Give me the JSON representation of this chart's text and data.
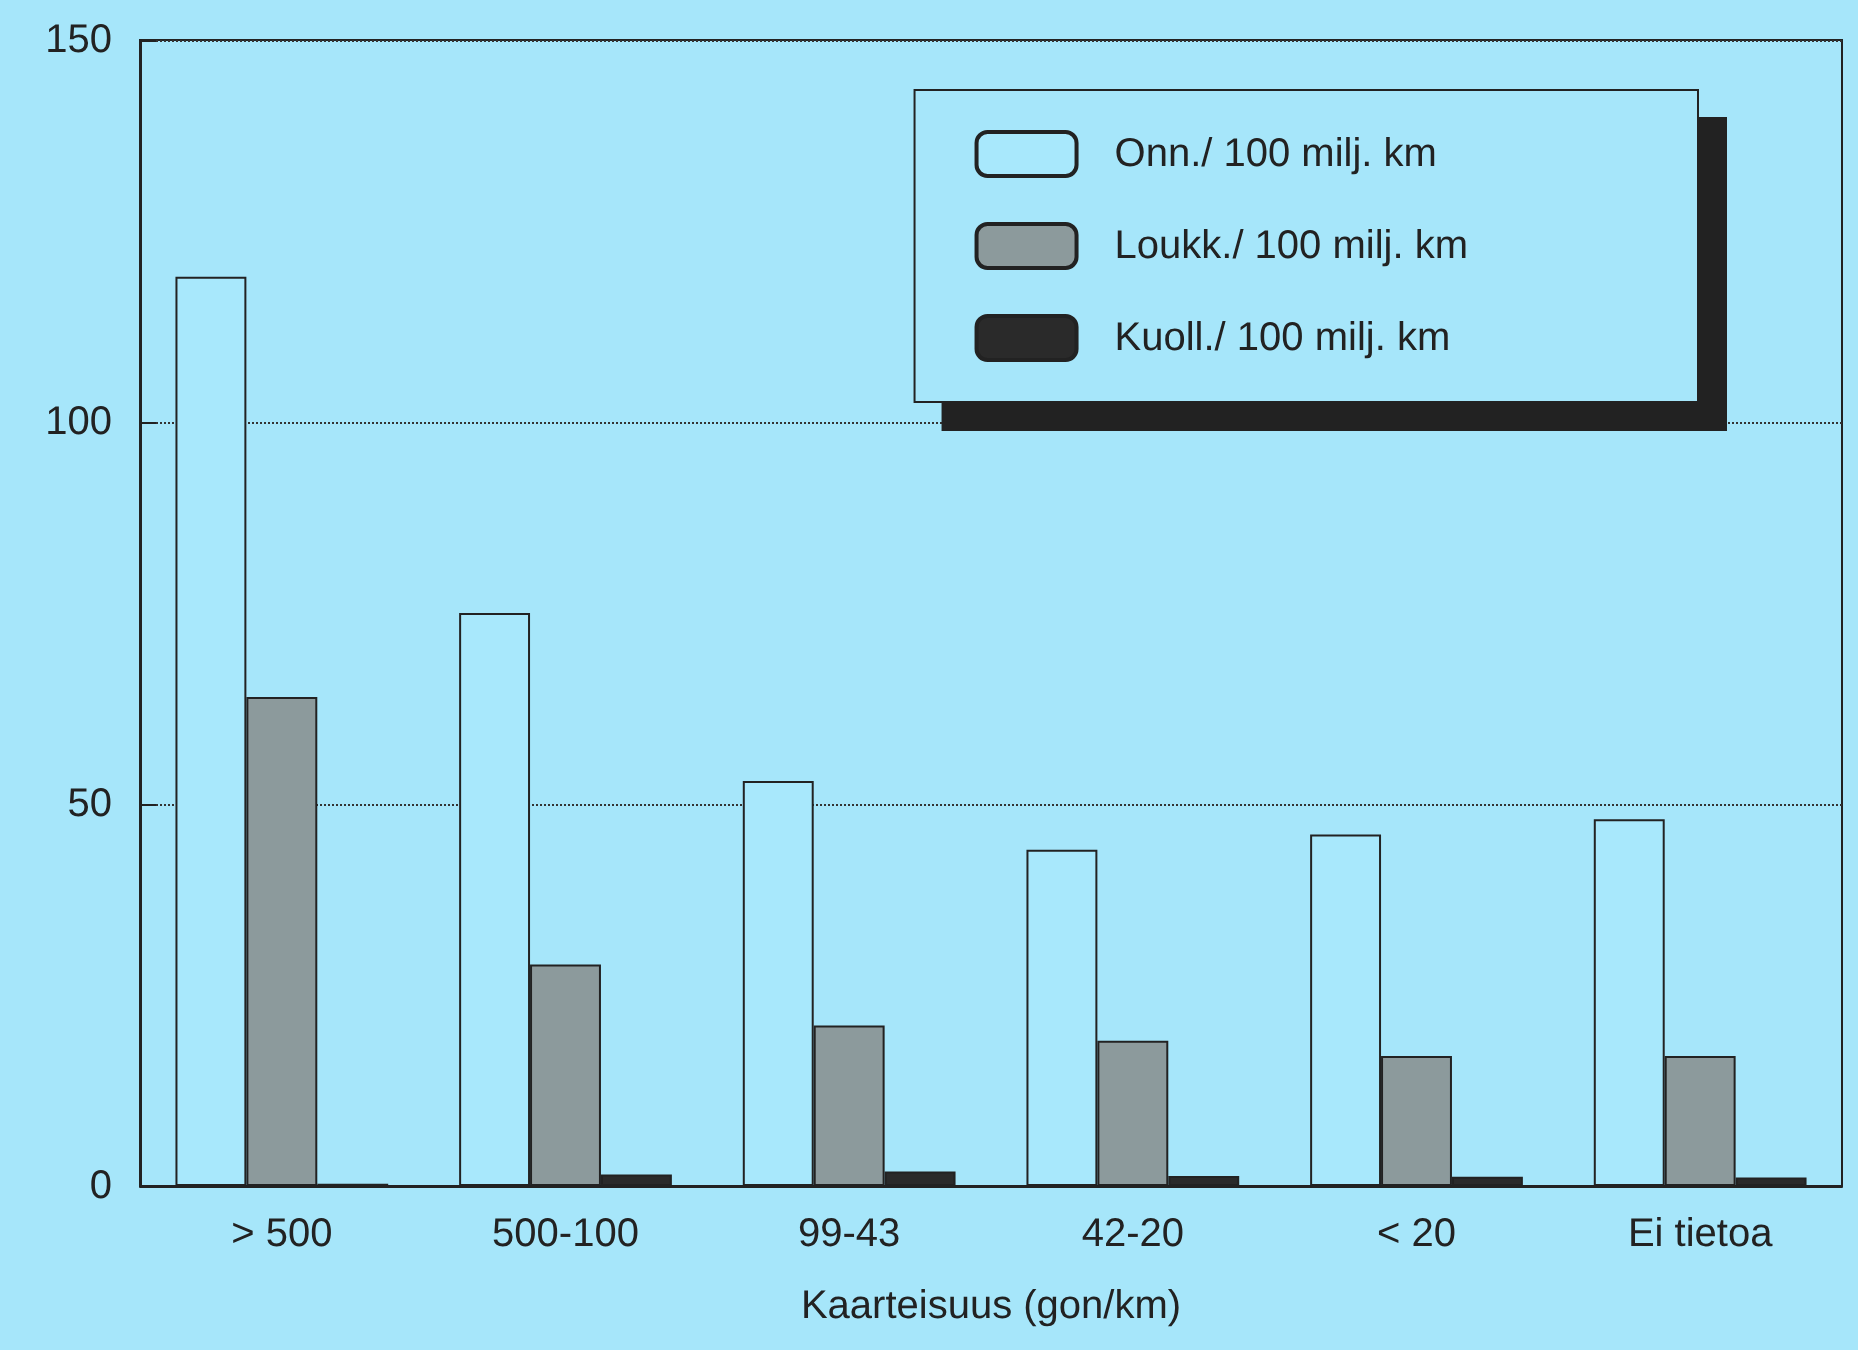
{
  "chart_data": {
    "type": "bar",
    "xlabel": "Kaarteisuus (gon/km)",
    "categories": [
      "> 500",
      "500-100",
      "99-43",
      "42-20",
      "< 20",
      "Ei tietoa"
    ],
    "series": [
      {
        "name": "Onn./ 100 milj. km",
        "color": "#a8e8fc",
        "values": [
          119,
          75,
          53,
          44,
          46,
          48
        ]
      },
      {
        "name": "Loukk./ 100 milj. km",
        "color": "#8c9a9c",
        "values": [
          64,
          29,
          21,
          19,
          17,
          17
        ]
      },
      {
        "name": "Kuoll./ 100 milj. km",
        "color": "#2a2a2a",
        "values": [
          0.3,
          1.5,
          1.9,
          1.3,
          1.2,
          1.1
        ]
      }
    ],
    "ylim": [
      0,
      150
    ],
    "yticks": [
      0,
      50,
      100,
      150
    ],
    "grid": "y",
    "legend": "top right"
  }
}
